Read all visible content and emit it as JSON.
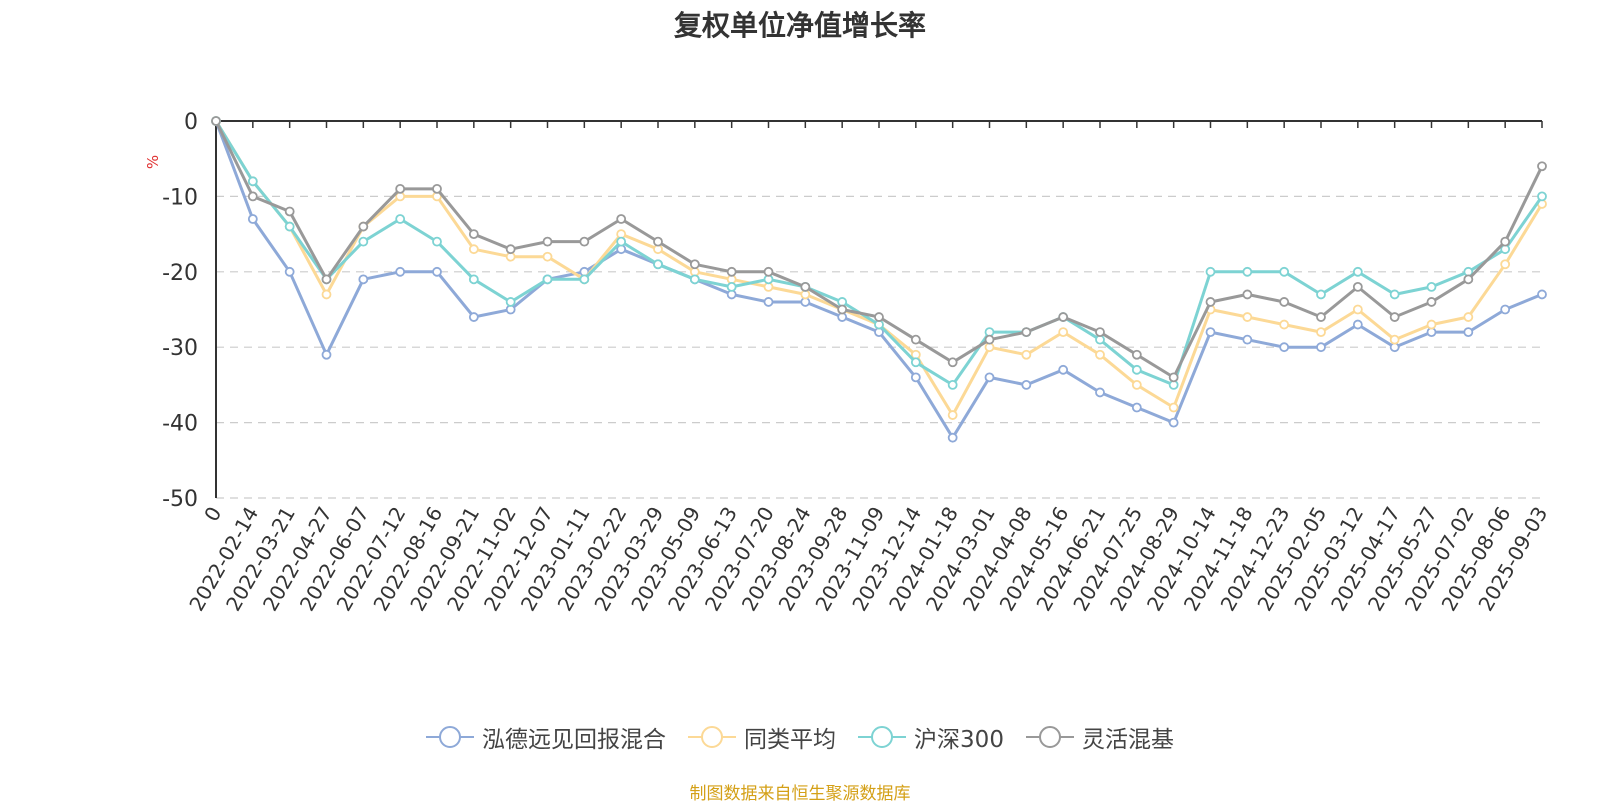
{
  "chart_data": {
    "type": "line",
    "title": "复权单位净值增长率",
    "ylabel": "%",
    "ylim": [
      -50,
      0
    ],
    "yticks": [
      0,
      -10,
      -20,
      -30,
      -40,
      -50
    ],
    "grid": true,
    "legend_position": "bottom-center",
    "xtick_labels": [
      "0",
      "2022-02-14",
      "2022-03-21",
      "2022-04-27",
      "2022-06-07",
      "2022-07-12",
      "2022-08-16",
      "2022-09-21",
      "2022-11-02",
      "2022-12-07",
      "2023-01-11",
      "2023-02-22",
      "2023-03-29",
      "2023-05-09",
      "2023-06-13",
      "2023-07-20",
      "2023-08-24",
      "2023-09-28",
      "2023-11-09",
      "2023-12-14",
      "2024-01-18",
      "2024-03-01",
      "2024-04-08",
      "2024-05-16",
      "2024-06-21",
      "2024-07-25",
      "2024-08-29",
      "2024-10-14",
      "2024-11-18",
      "2024-12-23",
      "2025-02-05",
      "2025-03-12",
      "2025-04-17",
      "2025-05-27",
      "2025-07-02",
      "2025-08-06",
      "2025-09-03"
    ],
    "series": [
      {
        "name": "泓德远见回报混合",
        "color": "#8ea9d8",
        "values": [
          0,
          -13,
          -20,
          -31,
          -21,
          -20,
          -20,
          -26,
          -25,
          -21,
          -20,
          -17,
          -19,
          -21,
          -23,
          -24,
          -24,
          -26,
          -28,
          -34,
          -42,
          -34,
          -35,
          -33,
          -36,
          -38,
          -40,
          -28,
          -29,
          -30,
          -30,
          -27,
          -30,
          -28,
          -28,
          -25,
          -23
        ]
      },
      {
        "name": "同类平均",
        "color": "#fcd996",
        "values": [
          0,
          -8,
          -14,
          -23,
          -14,
          -10,
          -10,
          -17,
          -18,
          -18,
          -21,
          -15,
          -17,
          -20,
          -21,
          -22,
          -23,
          -25,
          -27,
          -31,
          -39,
          -30,
          -31,
          -28,
          -31,
          -35,
          -38,
          -25,
          -26,
          -27,
          -28,
          -25,
          -29,
          -27,
          -26,
          -19,
          -11
        ]
      },
      {
        "name": "沪深300",
        "color": "#7dd3d3",
        "values": [
          0,
          -8,
          -14,
          -21,
          -16,
          -13,
          -16,
          -21,
          -24,
          -21,
          -21,
          -16,
          -19,
          -21,
          -22,
          -21,
          -22,
          -24,
          -27,
          -32,
          -35,
          -28,
          -28,
          -26,
          -29,
          -33,
          -35,
          -20,
          -20,
          -20,
          -23,
          -20,
          -23,
          -22,
          -20,
          -17,
          -10
        ]
      },
      {
        "name": "灵活混基",
        "color": "#999999",
        "values": [
          0,
          -10,
          -12,
          -21,
          -14,
          -9,
          -9,
          -15,
          -17,
          -16,
          -16,
          -13,
          -16,
          -19,
          -20,
          -20,
          -22,
          -25,
          -26,
          -29,
          -32,
          -29,
          -28,
          -26,
          -28,
          -31,
          -34,
          -24,
          -23,
          -24,
          -26,
          -22,
          -26,
          -24,
          -21,
          -16,
          -6
        ]
      }
    ]
  },
  "legend": {
    "items": [
      {
        "label": "泓德远见回报混合"
      },
      {
        "label": "同类平均"
      },
      {
        "label": "沪深300"
      },
      {
        "label": "灵活混基"
      }
    ]
  },
  "footer": {
    "source": "制图数据来自恒生聚源数据库"
  }
}
